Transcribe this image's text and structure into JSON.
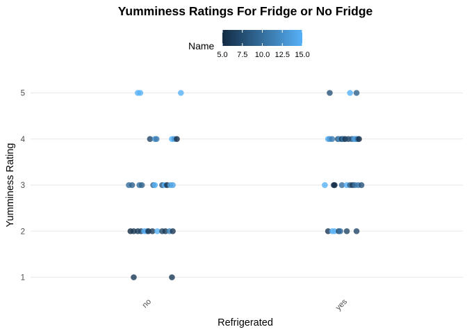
{
  "chart_data": {
    "type": "scatter",
    "title": "Yumminess Ratings For Fridge or No Fridge",
    "xlabel": "Refrigerated",
    "ylabel": "Yumminess Rating",
    "categories": [
      "no",
      "yes"
    ],
    "y_ticks": [
      "1",
      "2",
      "3",
      "4",
      "5"
    ],
    "ylim": [
      0.6,
      5.4
    ],
    "grid": true,
    "legend": {
      "title": "Name",
      "position": "top",
      "type": "colorbar",
      "range": [
        5,
        15
      ],
      "tick_labels": [
        "5.0",
        "7.5",
        "10.0",
        "12.5",
        "15.0"
      ],
      "color_low": "#132b43",
      "color_high": "#56b1f7"
    },
    "series": [
      {
        "x_category": "no",
        "points": [
          {
            "jitter": -0.15,
            "y": 1,
            "name": 6
          },
          {
            "jitter": 0.32,
            "y": 1,
            "name": 6
          },
          {
            "jitter": -0.19,
            "y": 2,
            "name": 5
          },
          {
            "jitter": -0.15,
            "y": 2,
            "name": 6
          },
          {
            "jitter": -0.1,
            "y": 2,
            "name": 6
          },
          {
            "jitter": -0.06,
            "y": 2,
            "name": 7
          },
          {
            "jitter": -0.02,
            "y": 2,
            "name": 15
          },
          {
            "jitter": 0.01,
            "y": 2,
            "name": 14
          },
          {
            "jitter": 0.03,
            "y": 2,
            "name": 5
          },
          {
            "jitter": 0.08,
            "y": 2,
            "name": 6
          },
          {
            "jitter": 0.14,
            "y": 2,
            "name": 15
          },
          {
            "jitter": 0.2,
            "y": 2,
            "name": 7
          },
          {
            "jitter": 0.24,
            "y": 2,
            "name": 6
          },
          {
            "jitter": 0.29,
            "y": 2,
            "name": 12
          },
          {
            "jitter": 0.33,
            "y": 2,
            "name": 6
          },
          {
            "jitter": -0.21,
            "y": 3,
            "name": 10
          },
          {
            "jitter": -0.17,
            "y": 3,
            "name": 9
          },
          {
            "jitter": -0.08,
            "y": 3,
            "name": 10
          },
          {
            "jitter": -0.05,
            "y": 3,
            "name": 9
          },
          {
            "jitter": 0.09,
            "y": 3,
            "name": 9
          },
          {
            "jitter": 0.11,
            "y": 3,
            "name": 15
          },
          {
            "jitter": 0.2,
            "y": 3,
            "name": 8
          },
          {
            "jitter": 0.23,
            "y": 3,
            "name": 15
          },
          {
            "jitter": 0.26,
            "y": 3,
            "name": 5
          },
          {
            "jitter": 0.3,
            "y": 3,
            "name": 14
          },
          {
            "jitter": 0.33,
            "y": 3,
            "name": 14
          },
          {
            "jitter": 0.05,
            "y": 4,
            "name": 7
          },
          {
            "jitter": 0.11,
            "y": 4,
            "name": 13
          },
          {
            "jitter": 0.13,
            "y": 4,
            "name": 11
          },
          {
            "jitter": 0.32,
            "y": 4,
            "name": 15
          },
          {
            "jitter": 0.35,
            "y": 4,
            "name": 13
          },
          {
            "jitter": 0.38,
            "y": 4,
            "name": 5
          },
          {
            "jitter": -0.1,
            "y": 5,
            "name": 15
          },
          {
            "jitter": -0.07,
            "y": 5,
            "name": 15
          },
          {
            "jitter": 0.43,
            "y": 5,
            "name": 15
          }
        ]
      },
      {
        "x_category": "yes",
        "points": [
          {
            "jitter": -0.17,
            "y": 2,
            "name": 6
          },
          {
            "jitter": -0.12,
            "y": 2,
            "name": 15
          },
          {
            "jitter": -0.09,
            "y": 2,
            "name": 15
          },
          {
            "jitter": -0.04,
            "y": 2,
            "name": 7
          },
          {
            "jitter": -0.02,
            "y": 2,
            "name": 10
          },
          {
            "jitter": 0.06,
            "y": 2,
            "name": 7
          },
          {
            "jitter": 0.18,
            "y": 2,
            "name": 7
          },
          {
            "jitter": -0.21,
            "y": 3,
            "name": 15
          },
          {
            "jitter": -0.1,
            "y": 3,
            "name": 6
          },
          {
            "jitter": -0.09,
            "y": 3,
            "name": 5
          },
          {
            "jitter": 0.0,
            "y": 3,
            "name": 10
          },
          {
            "jitter": 0.06,
            "y": 3,
            "name": 15
          },
          {
            "jitter": 0.1,
            "y": 3,
            "name": 9
          },
          {
            "jitter": 0.13,
            "y": 3,
            "name": 6
          },
          {
            "jitter": 0.16,
            "y": 3,
            "name": 10
          },
          {
            "jitter": 0.2,
            "y": 3,
            "name": 11
          },
          {
            "jitter": 0.24,
            "y": 3,
            "name": 8
          },
          {
            "jitter": -0.17,
            "y": 4,
            "name": 15
          },
          {
            "jitter": -0.15,
            "y": 4,
            "name": 13
          },
          {
            "jitter": -0.12,
            "y": 4,
            "name": 11
          },
          {
            "jitter": -0.05,
            "y": 4,
            "name": 8
          },
          {
            "jitter": -0.03,
            "y": 4,
            "name": 12
          },
          {
            "jitter": 0.0,
            "y": 4,
            "name": 6
          },
          {
            "jitter": 0.02,
            "y": 4,
            "name": 11
          },
          {
            "jitter": 0.04,
            "y": 4,
            "name": 6
          },
          {
            "jitter": 0.08,
            "y": 4,
            "name": 7
          },
          {
            "jitter": 0.12,
            "y": 4,
            "name": 8
          },
          {
            "jitter": 0.15,
            "y": 4,
            "name": 13
          },
          {
            "jitter": 0.17,
            "y": 4,
            "name": 14
          },
          {
            "jitter": 0.19,
            "y": 4,
            "name": 11
          },
          {
            "jitter": 0.21,
            "y": 4,
            "name": 5
          },
          {
            "jitter": -0.15,
            "y": 5,
            "name": 8
          },
          {
            "jitter": 0.1,
            "y": 5,
            "name": 15
          },
          {
            "jitter": 0.18,
            "y": 5,
            "name": 9
          }
        ]
      }
    ]
  }
}
